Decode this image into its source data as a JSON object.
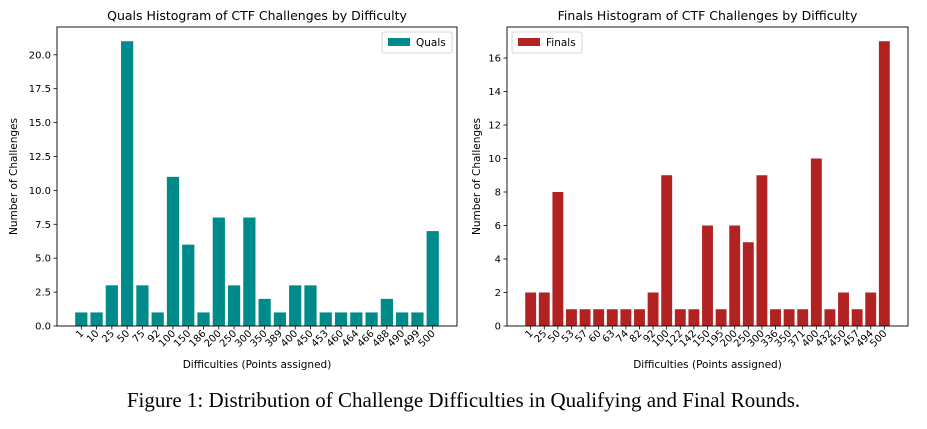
{
  "figure_caption": "Figure 1: Distribution of Challenge Difficulties in Qualifying and Final Rounds.",
  "chart_data": [
    {
      "type": "bar",
      "title": "Quals Histogram of CTF Challenges by Difficulty",
      "xlabel": "Difficulties (Points assigned)",
      "ylabel": "Number of Challenges",
      "legend": "Quals",
      "legend_position": "top-right",
      "color": "#008B8B",
      "ylim": [
        0,
        22.05
      ],
      "yticks": [
        0,
        2.5,
        5,
        7.5,
        10,
        12.5,
        15,
        17.5,
        20
      ],
      "ytick_labels": [
        "0.0",
        "2.5",
        "5.0",
        "7.5",
        "10.0",
        "12.5",
        "15.0",
        "17.5",
        "20.0"
      ],
      "categories": [
        "1",
        "10",
        "25",
        "50",
        "75",
        "92",
        "100",
        "150",
        "186",
        "200",
        "250",
        "300",
        "350",
        "389",
        "400",
        "450",
        "453",
        "460",
        "464",
        "466",
        "488",
        "490",
        "499",
        "500"
      ],
      "values": [
        1,
        1,
        3,
        21,
        3,
        1,
        11,
        6,
        1,
        8,
        3,
        8,
        2,
        1,
        3,
        3,
        1,
        1,
        1,
        1,
        2,
        1,
        1,
        7
      ]
    },
    {
      "type": "bar",
      "title": "Finals Histogram of CTF Challenges by Difficulty",
      "xlabel": "Difficulties (Points assigned)",
      "ylabel": "Number of Challenges",
      "legend": "Finals",
      "legend_position": "top-left",
      "color": "#B22222",
      "ylim": [
        0,
        17.85
      ],
      "yticks": [
        0,
        2,
        4,
        6,
        8,
        10,
        12,
        14,
        16
      ],
      "ytick_labels": [
        "0",
        "2",
        "4",
        "6",
        "8",
        "10",
        "12",
        "14",
        "16"
      ],
      "categories": [
        "1",
        "25",
        "50",
        "53",
        "57",
        "60",
        "63",
        "74",
        "82",
        "92",
        "100",
        "122",
        "142",
        "150",
        "195",
        "200",
        "250",
        "300",
        "336",
        "350",
        "371",
        "400",
        "432",
        "450",
        "457",
        "494",
        "500"
      ],
      "values": [
        2,
        2,
        8,
        1,
        1,
        1,
        1,
        1,
        1,
        2,
        9,
        1,
        1,
        6,
        1,
        6,
        5,
        9,
        1,
        1,
        1,
        10,
        1,
        2,
        1,
        2,
        17
      ]
    }
  ]
}
